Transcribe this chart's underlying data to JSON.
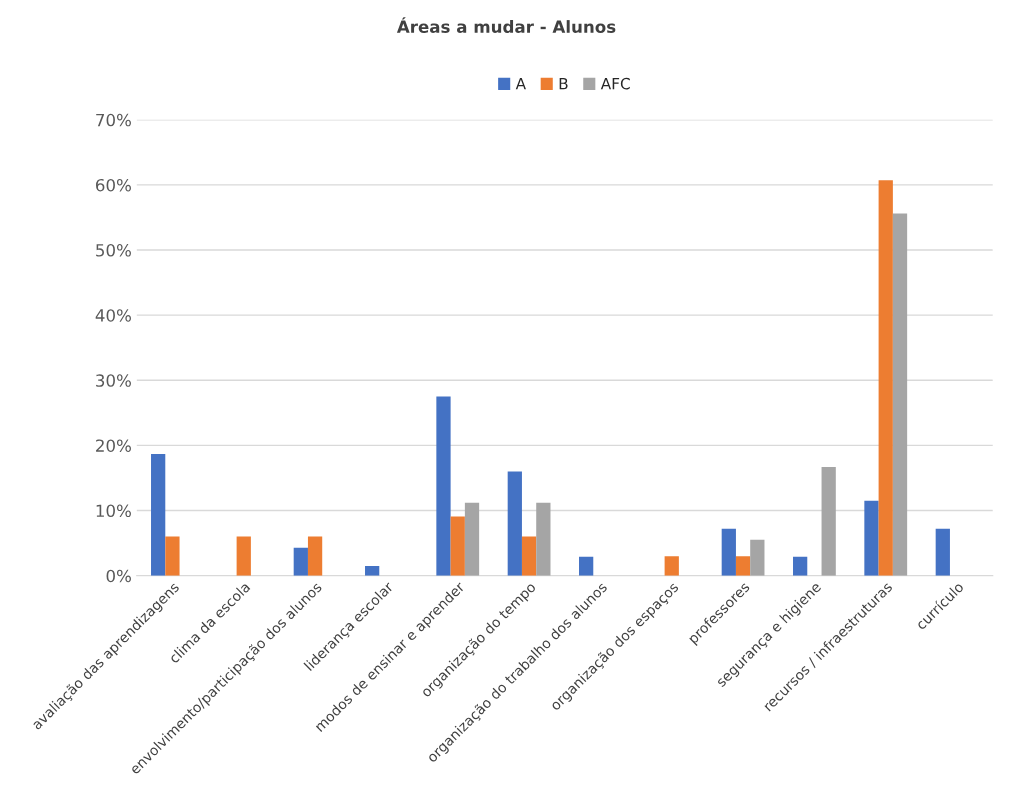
{
  "chart_data": {
    "type": "bar",
    "title": "Áreas a mudar - Alunos",
    "categories": [
      "avaliação das aprendizagens",
      "clima da escola",
      "envolvimento/participação dos alunos",
      "liderança escolar",
      "modos de ensinar e aprender",
      "organização do tempo",
      "organização do trabalho dos alunos",
      "organização dos espaços",
      "professores",
      "segurança e higiene",
      "recursos / infraestruturas",
      "currículo"
    ],
    "series": [
      {
        "name": "A",
        "color": "#4472c4",
        "values": [
          18.7,
          null,
          4.3,
          1.5,
          27.5,
          16.0,
          2.9,
          null,
          7.2,
          2.9,
          11.5,
          7.2
        ]
      },
      {
        "name": "B",
        "color": "#ed7d31",
        "values": [
          6.0,
          6.0,
          6.0,
          null,
          9.1,
          6.0,
          null,
          3.0,
          3.0,
          null,
          60.7,
          null
        ]
      },
      {
        "name": "AFC",
        "color": "#a5a5a5",
        "values": [
          null,
          null,
          null,
          null,
          11.2,
          11.2,
          null,
          null,
          5.5,
          16.7,
          55.6,
          null
        ]
      }
    ],
    "ylim": [
      0,
      70
    ],
    "yticks": [
      {
        "value": 0,
        "label": "0%"
      },
      {
        "value": 10,
        "label": "10%"
      },
      {
        "value": 20,
        "label": "20%"
      },
      {
        "value": 30,
        "label": "30%"
      },
      {
        "value": 40,
        "label": "40%"
      },
      {
        "value": 50,
        "label": "50%"
      },
      {
        "value": 60,
        "label": "60%"
      },
      {
        "value": 70,
        "label": "70%"
      }
    ],
    "grid": "y",
    "legend": "top"
  }
}
